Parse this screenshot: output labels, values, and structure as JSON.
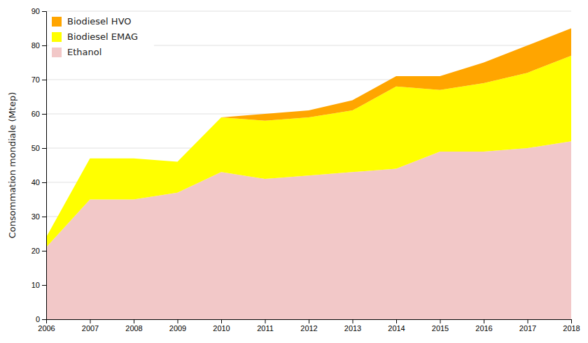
{
  "chart_data": {
    "type": "area",
    "stacked": true,
    "ylabel": "Consommation mondiale (Mtep)",
    "x": [
      2006,
      2007,
      2008,
      2009,
      2010,
      2011,
      2012,
      2013,
      2014,
      2015,
      2016,
      2017,
      2018
    ],
    "xlim": [
      2006,
      2018
    ],
    "xticks": [
      2006,
      2007,
      2008,
      2009,
      2010,
      2011,
      2012,
      2013,
      2014,
      2015,
      2016,
      2017,
      2018
    ],
    "ylim": [
      0,
      90
    ],
    "yticks": [
      0,
      10,
      20,
      30,
      40,
      50,
      60,
      70,
      80,
      90
    ],
    "grid": true,
    "legend": "upper left",
    "series": [
      {
        "name": "Ethanol",
        "color": "#f2c8c8",
        "values": [
          21,
          35,
          35,
          37,
          43,
          41,
          42,
          43,
          44,
          49,
          49,
          50,
          52
        ]
      },
      {
        "name": "Biodiesel EMAG",
        "color": "#ffff00",
        "values": [
          3,
          12,
          12,
          9,
          16,
          17,
          17,
          18,
          24,
          18,
          20,
          22,
          25
        ]
      },
      {
        "name": "Biodiesel HVO",
        "color": "#ffa500",
        "values": [
          0,
          0,
          0,
          0,
          0,
          2,
          2,
          3,
          3,
          4,
          6,
          8,
          8
        ]
      }
    ]
  }
}
